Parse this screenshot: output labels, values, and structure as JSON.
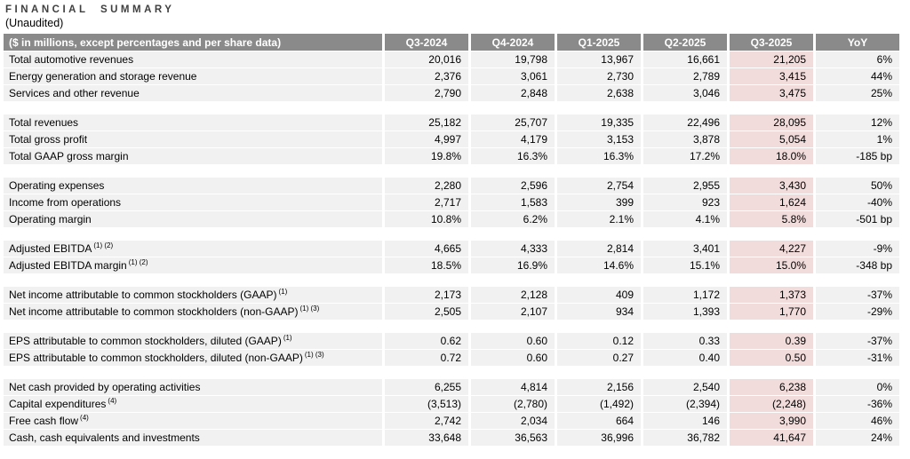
{
  "title": "FINANCIAL SUMMARY",
  "subtitle": "(Unaudited)",
  "colors": {
    "header_bg": "#8a8a8a",
    "header_text": "#ffffff",
    "row_bg": "#f1f1f1",
    "highlight_bg": "#f2dcdb",
    "separator": "#ffffff",
    "title_text": "#3f3f3f"
  },
  "table": {
    "header": {
      "label": "($ in millions, except percentages and per share data)",
      "columns": [
        "Q3-2024",
        "Q4-2024",
        "Q1-2025",
        "Q2-2025",
        "Q3-2025",
        "YoY"
      ]
    },
    "highlight_column": "Q3-2025",
    "groups": [
      {
        "rows": [
          {
            "label": "Total automotive revenues",
            "sup": "",
            "values": [
              "20,016",
              "19,798",
              "13,967",
              "16,661",
              "21,205",
              "6%"
            ]
          },
          {
            "label": "Energy generation and storage revenue",
            "sup": "",
            "values": [
              "2,376",
              "3,061",
              "2,730",
              "2,789",
              "3,415",
              "44%"
            ]
          },
          {
            "label": "Services and other revenue",
            "sup": "",
            "values": [
              "2,790",
              "2,848",
              "2,638",
              "3,046",
              "3,475",
              "25%"
            ]
          }
        ]
      },
      {
        "rows": [
          {
            "label": "Total revenues",
            "sup": "",
            "values": [
              "25,182",
              "25,707",
              "19,335",
              "22,496",
              "28,095",
              "12%"
            ]
          },
          {
            "label": "Total gross profit",
            "sup": "",
            "values": [
              "4,997",
              "4,179",
              "3,153",
              "3,878",
              "5,054",
              "1%"
            ]
          },
          {
            "label": "Total GAAP gross margin",
            "sup": "",
            "values": [
              "19.8%",
              "16.3%",
              "16.3%",
              "17.2%",
              "18.0%",
              "-185 bp"
            ]
          }
        ]
      },
      {
        "rows": [
          {
            "label": "Operating expenses",
            "sup": "",
            "values": [
              "2,280",
              "2,596",
              "2,754",
              "2,955",
              "3,430",
              "50%"
            ]
          },
          {
            "label": "Income from operations",
            "sup": "",
            "values": [
              "2,717",
              "1,583",
              "399",
              "923",
              "1,624",
              "-40%"
            ]
          },
          {
            "label": "Operating margin",
            "sup": "",
            "values": [
              "10.8%",
              "6.2%",
              "2.1%",
              "4.1%",
              "5.8%",
              "-501 bp"
            ]
          }
        ]
      },
      {
        "rows": [
          {
            "label": "Adjusted EBITDA",
            "sup": "(1) (2)",
            "values": [
              "4,665",
              "4,333",
              "2,814",
              "3,401",
              "4,227",
              "-9%"
            ]
          },
          {
            "label": "Adjusted EBITDA margin",
            "sup": "(1) (2)",
            "values": [
              "18.5%",
              "16.9%",
              "14.6%",
              "15.1%",
              "15.0%",
              "-348 bp"
            ]
          }
        ]
      },
      {
        "rows": [
          {
            "label": "Net income attributable to common stockholders (GAAP)",
            "sup": "(1)",
            "values": [
              "2,173",
              "2,128",
              "409",
              "1,172",
              "1,373",
              "-37%"
            ]
          },
          {
            "label": "Net income attributable to common stockholders (non-GAAP)",
            "sup": "(1) (3)",
            "values": [
              "2,505",
              "2,107",
              "934",
              "1,393",
              "1,770",
              "-29%"
            ]
          }
        ]
      },
      {
        "rows": [
          {
            "label": "EPS attributable to common stockholders, diluted (GAAP)",
            "sup": "(1)",
            "values": [
              "0.62",
              "0.60",
              "0.12",
              "0.33",
              "0.39",
              "-37%"
            ]
          },
          {
            "label": "EPS attributable to common stockholders, diluted (non-GAAP)",
            "sup": "(1) (3)",
            "values": [
              "0.72",
              "0.60",
              "0.27",
              "0.40",
              "0.50",
              "-31%"
            ]
          }
        ]
      },
      {
        "rows": [
          {
            "label": "Net cash provided by operating activities",
            "sup": "",
            "values": [
              "6,255",
              "4,814",
              "2,156",
              "2,540",
              "6,238",
              "0%"
            ]
          },
          {
            "label": "Capital expenditures",
            "sup": "(4)",
            "values": [
              "(3,513)",
              "(2,780)",
              "(1,492)",
              "(2,394)",
              "(2,248)",
              "-36%"
            ]
          },
          {
            "label": "Free cash flow",
            "sup": "(4)",
            "values": [
              "2,742",
              "2,034",
              "664",
              "146",
              "3,990",
              "46%"
            ]
          },
          {
            "label": "Cash, cash equivalents and investments",
            "sup": "",
            "values": [
              "33,648",
              "36,563",
              "36,996",
              "36,782",
              "41,647",
              "24%"
            ]
          }
        ]
      }
    ]
  }
}
